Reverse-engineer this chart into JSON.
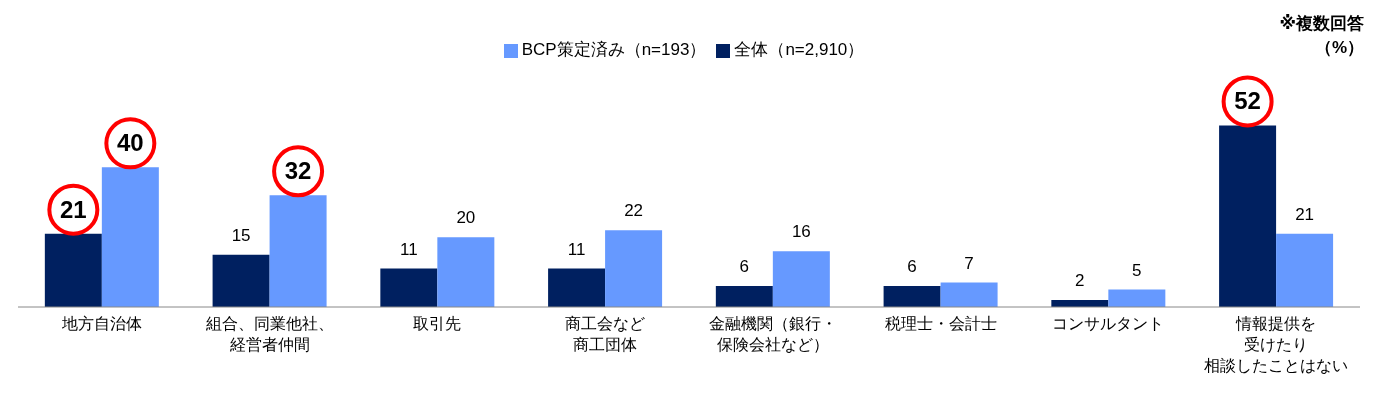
{
  "chart_data": {
    "type": "bar",
    "categories": [
      "地方自治体",
      "組合、同業他社、経営者仲間",
      "取引先",
      "商工会など商工団体",
      "金融機関（銀行・保険会社など）",
      "税理士・会計士",
      "コンサルタント",
      "情報提供を受けたり相談したことはない"
    ],
    "series": [
      {
        "name": "全体（n=2,910）",
        "color": "#002060",
        "values": [
          21,
          15,
          11,
          11,
          6,
          6,
          2,
          52
        ]
      },
      {
        "name": "BCP策定済み（n=193）",
        "color": "#6699ff",
        "values": [
          40,
          32,
          20,
          22,
          16,
          7,
          5,
          21
        ]
      }
    ],
    "data_labels": true,
    "legend": "top",
    "annotations": [
      "※複数回答",
      "（%）"
    ]
  }
}
